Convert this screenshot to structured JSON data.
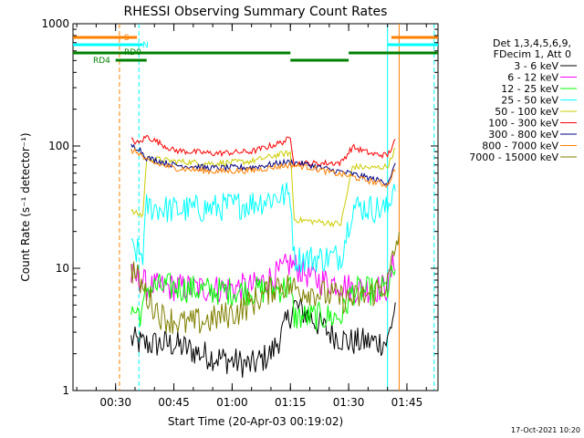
{
  "chart_data": {
    "type": "line",
    "title": "RHESSI Observing Summary Count Rates",
    "xlabel": "Start Time (20-Apr-03 00:19:02)",
    "ylabel": "Count Rate (s⁻¹ detector⁻¹)",
    "ylog": true,
    "xlim": [
      "00:19:02",
      "01:53:00"
    ],
    "ylim": [
      1,
      1000
    ],
    "x_ticks": [
      "00:30",
      "00:45",
      "01:00",
      "01:15",
      "01:30",
      "01:45"
    ],
    "y_ticks": [
      "1",
      "10",
      "100",
      "1000"
    ],
    "legend_position": "right",
    "legend_header": [
      "Det 1,3,4,5,6,9,",
      "FDecim 1, Att 0"
    ],
    "timestamp": "17-Oct-2021 10:20",
    "state_bars": {
      "S": {
        "label": "S",
        "color": "#ff8000",
        "segments": [
          [
            "00:19:02",
            "00:35:30"
          ],
          [
            "01:41:00",
            "01:53:00"
          ]
        ]
      },
      "N": {
        "label": "N",
        "color": "#00ffff",
        "segments": [
          [
            "00:19:02",
            "00:37:00"
          ],
          [
            "01:40:00",
            "01:53:00"
          ]
        ]
      },
      "RD0": {
        "label": "RD0",
        "color": "#008000",
        "segments": [
          [
            "00:19:02",
            "01:15:00"
          ],
          [
            "01:15:00",
            "01:30:00"
          ],
          [
            "01:30:00",
            "01:53:00"
          ]
        ],
        "levels": [
          0,
          1,
          0
        ]
      },
      "RD4": {
        "label": "RD4",
        "color": "#008000",
        "segments": [
          [
            "00:30:00",
            "00:38:00"
          ]
        ]
      }
    },
    "vertical_markers": [
      {
        "time": "00:31:00",
        "color": "#ff8000",
        "style": "dashed"
      },
      {
        "time": "00:36:00",
        "color": "#00ffff",
        "style": "dashed"
      },
      {
        "time": "01:40:00",
        "color": "#00ffff",
        "style": "solid"
      },
      {
        "time": "01:43:00",
        "color": "#ff8000",
        "style": "solid"
      },
      {
        "time": "01:52:00",
        "color": "#00ffff",
        "style": "dashed"
      }
    ],
    "series": [
      {
        "name": "3 - 6 keV",
        "color": "#000000",
        "x": [
          "00:34",
          "00:37",
          "00:45",
          "00:52",
          "00:58",
          "01:05",
          "01:10",
          "01:13",
          "01:16",
          "01:20",
          "01:25",
          "01:30",
          "01:35",
          "01:40",
          "01:42"
        ],
        "values": [
          2.6,
          2.4,
          2.4,
          2.0,
          1.8,
          1.6,
          2.0,
          3.0,
          5.0,
          4.0,
          3.0,
          2.5,
          2.5,
          2.5,
          5.0
        ]
      },
      {
        "name": "6 - 12 keV",
        "color": "#ff00ff",
        "x": [
          "00:34",
          "00:37",
          "00:38",
          "00:45",
          "00:55",
          "01:05",
          "01:12",
          "01:15",
          "01:18",
          "01:22",
          "01:28",
          "01:31",
          "01:36",
          "01:40",
          "01:42"
        ],
        "values": [
          8.5,
          8.0,
          7.0,
          7.0,
          6.8,
          7.0,
          9.0,
          11.0,
          9.5,
          8.0,
          7.5,
          6.8,
          6.8,
          7.0,
          12.0
        ]
      },
      {
        "name": "12 - 25 keV",
        "color": "#00ff00",
        "x": [
          "00:34",
          "00:37",
          "00:38",
          "00:45",
          "00:55",
          "01:05",
          "01:12",
          "01:15",
          "01:16",
          "01:22",
          "01:28",
          "01:31",
          "01:36",
          "01:40",
          "01:42"
        ],
        "values": [
          4.5,
          4.3,
          7.0,
          7.0,
          6.5,
          6.5,
          6.8,
          7.0,
          4.0,
          4.0,
          4.0,
          6.5,
          6.5,
          6.8,
          10.0
        ]
      },
      {
        "name": "25 - 50 keV",
        "color": "#00ffff",
        "x": [
          "00:34",
          "00:37",
          "00:38",
          "00:45",
          "00:55",
          "01:05",
          "01:12",
          "01:15",
          "01:16",
          "01:22",
          "01:28",
          "01:31",
          "01:36",
          "01:40",
          "01:42"
        ],
        "values": [
          14.0,
          13.0,
          32.0,
          30.0,
          31.0,
          34.0,
          39.0,
          40.0,
          12.0,
          12.0,
          12.5,
          32.0,
          31.0,
          30.0,
          55.0
        ]
      },
      {
        "name": "50 - 100 keV",
        "color": "#cccc00",
        "x": [
          "00:34",
          "00:37",
          "00:38",
          "00:45",
          "00:55",
          "01:05",
          "01:12",
          "01:15",
          "01:16",
          "01:22",
          "01:28",
          "01:31",
          "01:36",
          "01:40",
          "01:42"
        ],
        "values": [
          29.0,
          27.0,
          80.0,
          75.0,
          72.0,
          75.0,
          85.0,
          88.0,
          25.0,
          24.0,
          23.0,
          68.0,
          66.0,
          68.0,
          95.0
        ]
      },
      {
        "name": "100 - 300 keV",
        "color": "#ff0000",
        "x": [
          "00:34",
          "00:36",
          "00:38",
          "00:45",
          "00:55",
          "01:05",
          "01:12",
          "01:15",
          "01:16",
          "01:22",
          "01:28",
          "01:31",
          "01:36",
          "01:40",
          "01:42"
        ],
        "values": [
          112.0,
          105.0,
          120.0,
          92.0,
          87.0,
          90.0,
          105.0,
          115.0,
          72.0,
          72.0,
          73.0,
          98.0,
          86.0,
          84.0,
          110.0
        ]
      },
      {
        "name": "300 - 800 keV",
        "color": "#000080",
        "x": [
          "00:34",
          "00:36",
          "00:38",
          "00:45",
          "00:55",
          "01:05",
          "01:12",
          "01:15",
          "01:20",
          "01:25",
          "01:30",
          "01:35",
          "01:40",
          "01:42"
        ],
        "values": [
          100.0,
          96.0,
          80.0,
          70.0,
          66.0,
          67.0,
          72.0,
          74.0,
          70.0,
          64.0,
          60.0,
          55.0,
          50.0,
          70.0
        ]
      },
      {
        "name": "800 - 7000 keV",
        "color": "#ff8000",
        "x": [
          "00:34",
          "00:36",
          "00:38",
          "00:45",
          "00:55",
          "01:05",
          "01:12",
          "01:15",
          "01:20",
          "01:25",
          "01:30",
          "01:35",
          "01:40",
          "01:42"
        ],
        "values": [
          92.0,
          88.0,
          75.0,
          66.0,
          62.0,
          63.0,
          68.0,
          70.0,
          67.0,
          61.0,
          57.0,
          52.0,
          48.0,
          65.0
        ]
      },
      {
        "name": "7000 - 15000 keV",
        "color": "#808000",
        "x": [
          "00:34",
          "00:36",
          "00:38",
          "00:42",
          "00:48",
          "00:55",
          "01:02",
          "01:08",
          "01:12",
          "01:15",
          "01:20",
          "01:25",
          "01:30",
          "01:35",
          "01:40",
          "01:43"
        ],
        "values": [
          10.0,
          8.0,
          6.0,
          4.0,
          3.5,
          3.8,
          4.5,
          6.0,
          7.5,
          7.0,
          6.5,
          6.0,
          5.5,
          6.0,
          7.5,
          20.0
        ]
      }
    ]
  }
}
